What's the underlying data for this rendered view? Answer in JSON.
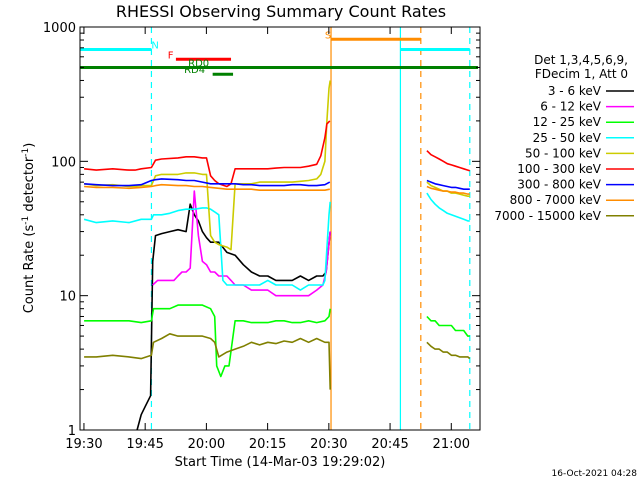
{
  "chart_data": {
    "type": "line",
    "title": "RHESSI Observing Summary Count Rates",
    "xlabel": "Start Time (14-Mar-03 19:29:02)",
    "ylabel_parts": {
      "main": "Count Rate (s",
      "sup": "-1",
      "rest": " detector",
      "sup2": "-1",
      "close": ")"
    },
    "yscale": "log",
    "ylim": [
      1,
      1000
    ],
    "xlim_min": [
      0,
      98
    ],
    "x_ticks": [
      {
        "label": "19:30",
        "min": 0.9667
      },
      {
        "label": "19:45",
        "min": 15.9667
      },
      {
        "label": "20:00",
        "min": 30.9667
      },
      {
        "label": "20:15",
        "min": 45.9667
      },
      {
        "label": "20:30",
        "min": 60.9667
      },
      {
        "label": "20:45",
        "min": 75.9667
      },
      {
        "label": "21:00",
        "min": 90.9667
      }
    ],
    "y_ticks": [
      {
        "label": "1",
        "value": 1
      },
      {
        "label": "10",
        "value": 10
      },
      {
        "label": "100",
        "value": 100
      },
      {
        "label": "1000",
        "value": 1000
      }
    ],
    "legend_header": [
      "Det 1,3,4,5,6,9,",
      "FDecim 1, Att 0"
    ],
    "legend_position": "right",
    "timestamp": "16-Oct-2021 04:28",
    "flags": [
      {
        "label": "N",
        "color": "#00ffff",
        "start": 0,
        "end": 17.5,
        "value": 680,
        "label_at": 17.5
      },
      {
        "label": "N",
        "color": "#00ffff",
        "start": 78.5,
        "end": 95.5,
        "value": 680,
        "label_at": null
      },
      {
        "label": "S",
        "color": "#ff8c00",
        "start": 61.5,
        "end": 83.5,
        "value": 810,
        "label_at": 60.0
      },
      {
        "label": "F",
        "color": "#ff0000",
        "start": 23.5,
        "end": 37.0,
        "value": 575,
        "label_at": 21.5
      },
      {
        "label": "RD0",
        "color": "#008000",
        "start": 0,
        "end": 97.5,
        "value": 500,
        "label_at": 26.5
      },
      {
        "label": "RD4",
        "color": "#008000",
        "start": 32.5,
        "end": 37.5,
        "value": 445,
        "label_at": 25.5
      }
    ],
    "vlines": [
      {
        "min": 17.5,
        "color": "#00ffff",
        "style": "dashed"
      },
      {
        "min": 61.5,
        "color": "#ff8c00",
        "style": "solid"
      },
      {
        "min": 78.5,
        "color": "#00ffff",
        "style": "solid"
      },
      {
        "min": 83.5,
        "color": "#ff8c00",
        "style": "dashed"
      },
      {
        "min": 95.5,
        "color": "#00ffff",
        "style": "dashed"
      }
    ],
    "series": [
      {
        "name": "3 - 6 keV",
        "color": "#000000",
        "x": [
          14,
          15,
          16,
          17.3,
          17.8,
          18.5,
          20,
          22,
          24,
          26,
          27,
          28,
          29,
          30,
          31,
          32,
          34,
          36,
          38,
          40,
          42,
          44,
          46,
          48,
          50,
          52,
          54,
          56,
          58,
          59.5,
          60.3,
          61.3
        ],
        "y": [
          1,
          1.3,
          1.5,
          1.8,
          18,
          28,
          29,
          30,
          31,
          30,
          48,
          40,
          36,
          30,
          27,
          25,
          25,
          21,
          20,
          17,
          15,
          14,
          14,
          13,
          13,
          13,
          14,
          13,
          14,
          14,
          15,
          30
        ]
      },
      {
        "name": "6 - 12 keV",
        "color": "#ff00ff",
        "x": [
          17.8,
          19,
          20,
          21,
          22,
          23,
          24,
          25,
          26,
          27,
          28,
          29,
          30,
          31,
          32,
          33,
          34,
          35,
          36,
          37,
          38,
          40,
          42,
          44,
          46,
          48,
          50,
          52,
          54,
          56,
          58,
          59.5,
          60.3,
          61.3
        ],
        "y": [
          12,
          13,
          13,
          13,
          13,
          13,
          14,
          15,
          15,
          16,
          60,
          28,
          18,
          17,
          15,
          15,
          14,
          14,
          14,
          13,
          12,
          12,
          11,
          11,
          11,
          10,
          10,
          10,
          10,
          10,
          11,
          12,
          15,
          30
        ]
      },
      {
        "name": "12 - 25 keV",
        "color": "#00ff00",
        "x": [
          1,
          4,
          8,
          12,
          15,
          17.5,
          18,
          20,
          22,
          24,
          26,
          28,
          30,
          32,
          33,
          33.5,
          34.5,
          35.5,
          36.5,
          38,
          40,
          42,
          44,
          46,
          48,
          50,
          52,
          54,
          56,
          58,
          60,
          61,
          61.3
        ],
        "y": [
          6.5,
          6.5,
          6.5,
          6.5,
          6.3,
          6.5,
          8,
          8,
          8,
          8.5,
          8.5,
          8.5,
          8.5,
          8,
          7,
          3,
          2.5,
          3,
          3,
          6.5,
          6.5,
          6.3,
          6.3,
          6.3,
          6.5,
          6.5,
          6.3,
          6.3,
          6.5,
          6.3,
          6.5,
          7,
          8
        ]
      },
      {
        "name": "25 - 50 keV",
        "color": "#00ffff",
        "x": [
          1,
          4,
          8,
          12,
          15,
          17.5,
          18,
          20,
          22,
          24,
          26,
          28,
          30,
          31,
          32,
          33,
          34,
          35,
          36,
          38,
          40,
          42,
          44,
          46,
          48,
          50,
          52,
          54,
          56,
          58,
          59.5,
          60,
          61,
          61.3
        ],
        "y": [
          37,
          35,
          36,
          35,
          37,
          37,
          40,
          40,
          41,
          43,
          44,
          44,
          45,
          45,
          44,
          42,
          40,
          13,
          12,
          12,
          12,
          12,
          12,
          13,
          12,
          12,
          12,
          11,
          12,
          12,
          12,
          13,
          40,
          50
        ]
      },
      {
        "name": "50 - 100 keV",
        "color": "#cccc00",
        "x": [
          1,
          4,
          8,
          12,
          13.5,
          15,
          17.5,
          18.5,
          20,
          24,
          26,
          28,
          30,
          31,
          32,
          33,
          34,
          36,
          37,
          38,
          40,
          42,
          44,
          46,
          48,
          50,
          52,
          54,
          56,
          58,
          59,
          60,
          60.5,
          61,
          61.3
        ],
        "y": [
          68,
          66,
          67,
          65,
          65,
          66,
          66,
          78,
          80,
          80,
          82,
          82,
          80,
          80,
          28,
          25,
          24,
          23,
          22,
          68,
          68,
          68,
          70,
          70,
          70,
          70,
          70,
          71,
          72,
          74,
          80,
          100,
          200,
          350,
          400
        ]
      },
      {
        "name": "100 - 300 keV",
        "color": "#ff0000",
        "x": [
          1,
          4,
          8,
          12,
          13.5,
          15,
          17.5,
          18.5,
          20,
          24,
          26,
          28,
          30,
          31,
          32,
          33,
          34,
          36,
          37,
          38,
          40,
          42,
          44,
          46,
          48,
          50,
          52,
          54,
          56,
          58,
          59,
          60,
          60.5,
          61.2
        ],
        "y": [
          88,
          86,
          88,
          86,
          86,
          88,
          90,
          102,
          104,
          106,
          108,
          108,
          106,
          106,
          78,
          72,
          68,
          65,
          68,
          88,
          88,
          88,
          88,
          88,
          89,
          90,
          90,
          90,
          92,
          95,
          110,
          150,
          190,
          200
        ]
      },
      {
        "name": "300 - 800 keV",
        "color": "#0000ff",
        "x": [
          1,
          4,
          8,
          12,
          15,
          17.5,
          18.5,
          20,
          24,
          26,
          28,
          30,
          32,
          34,
          36,
          38,
          40,
          42,
          44,
          46,
          48,
          50,
          52,
          54,
          56,
          58,
          60,
          61.2
        ],
        "y": [
          68,
          67,
          66,
          66,
          67,
          72,
          73,
          74,
          73,
          72,
          72,
          70,
          68,
          68,
          68,
          68,
          67,
          67,
          66,
          66,
          66,
          66,
          67,
          67,
          66,
          66,
          67,
          70
        ]
      },
      {
        "name": "800 - 7000 keV",
        "color": "#ff8c00",
        "x": [
          1,
          4,
          8,
          12,
          15,
          17.5,
          18.5,
          20,
          24,
          26,
          28,
          30,
          32,
          34,
          36,
          38,
          40,
          42,
          44,
          46,
          48,
          50,
          52,
          54,
          56,
          58,
          60,
          61.2
        ],
        "y": [
          65,
          64,
          64,
          63,
          64,
          65,
          66,
          67,
          66,
          66,
          65,
          65,
          64,
          63,
          62,
          62,
          62,
          62,
          61,
          61,
          61,
          61,
          61,
          61,
          61,
          61,
          61,
          62
        ]
      },
      {
        "name": "7000 - 15000 keV",
        "color": "#808000",
        "x": [
          1,
          4,
          8,
          12,
          15,
          17.5,
          18,
          20,
          22,
          24,
          26,
          28,
          30,
          32,
          33,
          34,
          36,
          38,
          40,
          42,
          44,
          46,
          48,
          50,
          52,
          54,
          56,
          58,
          60,
          61,
          61.3
        ],
        "y": [
          3.5,
          3.5,
          3.6,
          3.5,
          3.4,
          3.6,
          4.5,
          4.8,
          5.2,
          5,
          5,
          5,
          5,
          4.8,
          4.5,
          3.5,
          3.8,
          4,
          4.2,
          4.5,
          4.3,
          4.5,
          4.4,
          4.6,
          4.5,
          4.8,
          4.5,
          4.8,
          4.5,
          4.5,
          2
        ]
      }
    ],
    "series_segment2": [
      {
        "name": "100 - 300 keV",
        "x": [
          85,
          86,
          87,
          88,
          89,
          90,
          91,
          92,
          93,
          94,
          95,
          95.5
        ],
        "y": [
          120,
          112,
          108,
          104,
          100,
          96,
          94,
          92,
          90,
          88,
          86,
          85
        ]
      },
      {
        "name": "50 - 100 keV",
        "x": [
          85,
          86,
          87,
          88,
          89,
          90,
          91,
          92,
          93,
          94,
          95,
          95.5
        ],
        "y": [
          70,
          66,
          64,
          62,
          60,
          60,
          58,
          58,
          57,
          56,
          55,
          55
        ]
      },
      {
        "name": "300 - 800 keV",
        "x": [
          85,
          86,
          87,
          88,
          89,
          90,
          91,
          92,
          93,
          94,
          95,
          95.5
        ],
        "y": [
          72,
          70,
          68,
          67,
          66,
          65,
          64,
          64,
          63,
          62,
          62,
          62
        ]
      },
      {
        "name": "800 - 7000 keV",
        "x": [
          85,
          86,
          87,
          88,
          89,
          90,
          91,
          92,
          93,
          94,
          95,
          95.5
        ],
        "y": [
          65,
          63,
          62,
          61,
          60,
          60,
          59,
          59,
          58,
          58,
          57,
          57
        ]
      },
      {
        "name": "25 - 50 keV",
        "x": [
          85,
          86,
          87,
          88,
          89,
          90,
          91,
          92,
          93,
          94,
          95,
          95.5
        ],
        "y": [
          58,
          52,
          48,
          45,
          43,
          41,
          40,
          39,
          38,
          37,
          36,
          36
        ]
      },
      {
        "name": "12 - 25 keV",
        "x": [
          85,
          86,
          87,
          88,
          89,
          90,
          91,
          92,
          93,
          94,
          95,
          95.5
        ],
        "y": [
          7,
          6.5,
          6.5,
          6,
          6,
          6,
          6,
          5.5,
          5.5,
          5.5,
          5,
          5
        ]
      },
      {
        "name": "7000 - 15000 keV",
        "x": [
          85,
          86,
          87,
          88,
          89,
          90,
          91,
          92,
          93,
          94,
          95,
          95.5
        ],
        "y": [
          4.5,
          4.2,
          4,
          4,
          3.8,
          3.8,
          3.6,
          3.6,
          3.5,
          3.5,
          3.5,
          3.4
        ]
      }
    ]
  }
}
